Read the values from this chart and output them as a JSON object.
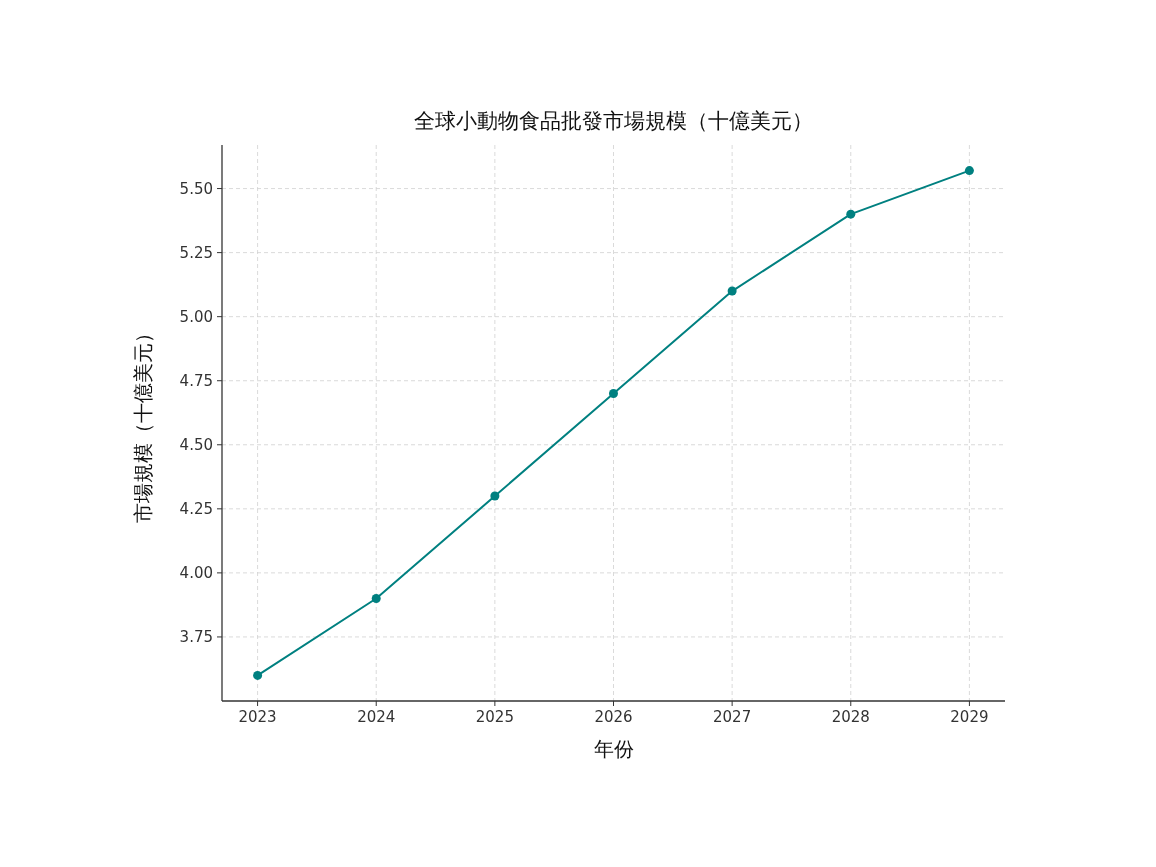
{
  "chart_data": {
    "type": "line",
    "title": "全球小動物食品批發市場規模（十億美元）",
    "xlabel": "年份",
    "ylabel": "市場規模（十億美元）",
    "x": [
      2023,
      2024,
      2025,
      2026,
      2027,
      2028,
      2029
    ],
    "series": [
      {
        "color": "#008080",
        "values": [
          3.6,
          3.9,
          4.3,
          4.7,
          5.1,
          5.4,
          5.57
        ]
      }
    ],
    "xlim": [
      2022.7,
      2029.3
    ],
    "xticks": [
      2023,
      2024,
      2025,
      2026,
      2027,
      2028,
      2029
    ],
    "ylim": [
      3.5,
      5.67
    ],
    "yticks": [
      {
        "value": 3.75,
        "label": "3.75"
      },
      {
        "value": 4.0,
        "label": "4.00"
      },
      {
        "value": 4.25,
        "label": "4.25"
      },
      {
        "value": 4.5,
        "label": "4.50"
      },
      {
        "value": 4.75,
        "label": "4.75"
      },
      {
        "value": 5.0,
        "label": "5.00"
      },
      {
        "value": 5.25,
        "label": "5.25"
      },
      {
        "value": 5.5,
        "label": "5.50"
      }
    ],
    "grid": true,
    "marker": "circle",
    "line_style": "solid"
  }
}
